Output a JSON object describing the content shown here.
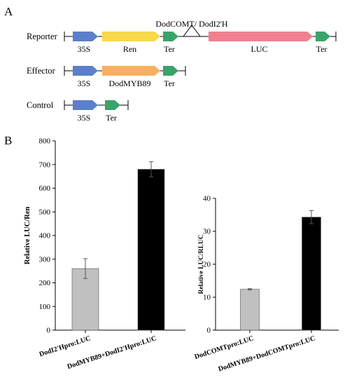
{
  "panel_a": {
    "letter": "A",
    "rows": [
      {
        "label": "Reporter",
        "elements": [
          {
            "name": "35S",
            "color": "#5b7fcb"
          },
          {
            "name": "Ren",
            "color": "#f9d84a"
          },
          {
            "name": "Ter",
            "color": "#3aa36a"
          },
          {
            "name": "LUC",
            "color": "#f08090"
          },
          {
            "name": "Ter",
            "color": "#3aa36a"
          }
        ],
        "insert_label": "DodCOMT/ DodI2'H"
      },
      {
        "label": "Effector",
        "elements": [
          {
            "name": "35S",
            "color": "#5b7fcb"
          },
          {
            "name": "DodMYB89",
            "color": "#f8b060"
          },
          {
            "name": "Ter",
            "color": "#3aa36a"
          }
        ]
      },
      {
        "label": "Control",
        "elements": [
          {
            "name": "35S",
            "color": "#5b7fcb"
          },
          {
            "name": "Ter",
            "color": "#3aa36a"
          }
        ]
      }
    ]
  },
  "panel_b": {
    "letter": "B"
  },
  "chart_data": [
    {
      "type": "bar",
      "categories": [
        "DodI2'Hpro:LUC",
        "DodMYB89+DodI2'Hpro:LUC"
      ],
      "values": [
        260,
        680
      ],
      "errors": [
        42,
        32
      ],
      "bar_colors": [
        "#c0c0c0",
        "#000000"
      ],
      "ylabel": "Relative  LUC/Ren",
      "ylim": [
        0,
        800
      ],
      "yticks": [
        0,
        100,
        200,
        300,
        400,
        500,
        600,
        700,
        800
      ],
      "grid": false
    },
    {
      "type": "bar",
      "categories": [
        "DodCOMTpro:LUC",
        "DodMYB89+DodCOMTpro:LUC"
      ],
      "values": [
        12.4,
        34.3
      ],
      "errors": [
        0.2,
        2.0
      ],
      "bar_colors": [
        "#c0c0c0",
        "#000000"
      ],
      "ylabel": "Relative  LUC/RLUC",
      "ylim": [
        0,
        40
      ],
      "yticks": [
        0,
        10,
        20,
        30,
        40
      ],
      "grid": false
    }
  ]
}
